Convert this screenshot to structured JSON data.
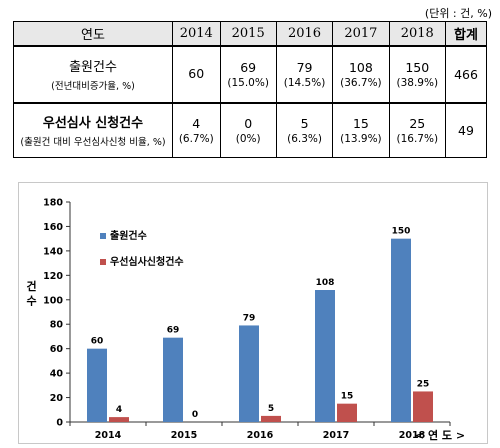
{
  "unit_note": "(단위 : 건, %)",
  "table": {
    "header_label": "연도",
    "years": [
      "2014",
      "2015",
      "2016",
      "2017",
      "2018"
    ],
    "total_header": "합계",
    "rows": [
      {
        "label": "출원건수",
        "sublabel": "(전년대비증가율, %)",
        "values": [
          "60",
          "69",
          "79",
          "108",
          "150"
        ],
        "rates": [
          "",
          "(15.0%)",
          "(14.5%)",
          "(36.7%)",
          "(38.9%)"
        ],
        "total": "466"
      },
      {
        "label": "우선심사 신청건수",
        "sublabel": "(출원건 대비 우선심사신청 비율, %)",
        "values": [
          "4",
          "0",
          "5",
          "15",
          "25"
        ],
        "rates": [
          "(6.7%)",
          "(0%)",
          "(6.3%)",
          "(13.9%)",
          "(16.7%)"
        ],
        "total": "49"
      }
    ]
  },
  "chart_data": {
    "type": "bar",
    "categories": [
      "2014",
      "2015",
      "2016",
      "2017",
      "2018"
    ],
    "series": [
      {
        "name": "출원건수",
        "values": [
          60,
          69,
          79,
          108,
          150
        ],
        "color": "#4f81bd"
      },
      {
        "name": "우선심사신청건수",
        "values": [
          4,
          0,
          5,
          15,
          25
        ],
        "color": "#c0504d"
      }
    ],
    "ylim": [
      0,
      180
    ],
    "yticks": [
      "0",
      "20",
      "40",
      "60",
      "80",
      "100",
      "120",
      "140",
      "160",
      "180"
    ],
    "ylabel": "건 수",
    "xlabel": "< 연 도 >",
    "legend_position": "top-left",
    "grid": false
  }
}
